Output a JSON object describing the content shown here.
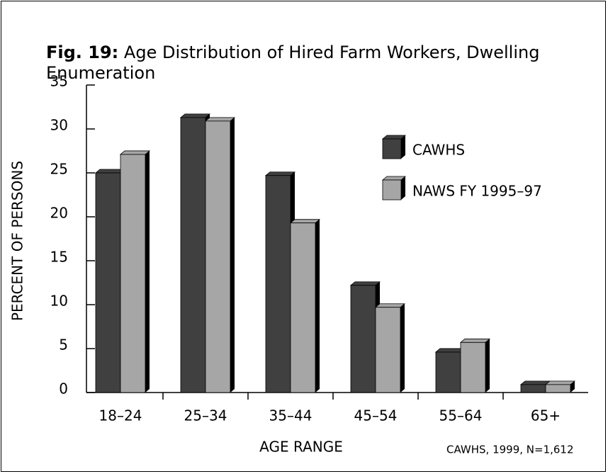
{
  "chart_data": {
    "type": "bar3d",
    "title_label": "Fig. 19:",
    "title": "Age Distribution of Hired Farm Workers, Dwelling Enumeration",
    "xlabel": "AGE RANGE",
    "ylabel": "PERCENT OF PERSONS",
    "note": "CAWHS, 1999, N=1,612",
    "categories": [
      "18–24",
      "25–34",
      "35–44",
      "45–54",
      "55–64",
      "65+"
    ],
    "series": [
      {
        "name": "CAWHS",
        "color": "#404040",
        "values": [
          25,
          31.3,
          24.7,
          12.2,
          4.6,
          0.9
        ]
      },
      {
        "name": "NAWS FY 1995–97",
        "color": "#a6a6a6",
        "values": [
          27.1,
          30.9,
          19.3,
          9.7,
          5.7,
          0.9
        ]
      }
    ],
    "ylim": [
      0,
      35
    ],
    "yticks": [
      0,
      5,
      10,
      15,
      20,
      25,
      30,
      35
    ],
    "grid": false
  }
}
